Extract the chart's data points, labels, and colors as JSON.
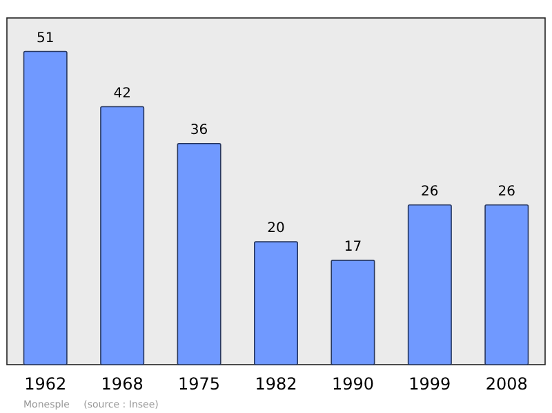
{
  "chart_data": {
    "type": "bar",
    "categories": [
      "1962",
      "1968",
      "1975",
      "1982",
      "1990",
      "1999",
      "2008"
    ],
    "values": [
      51,
      42,
      36,
      20,
      17,
      26,
      26
    ],
    "color": "#7099ff",
    "data_labels": true,
    "annotations": [
      "Monesple",
      "(source : Insee)"
    ]
  }
}
